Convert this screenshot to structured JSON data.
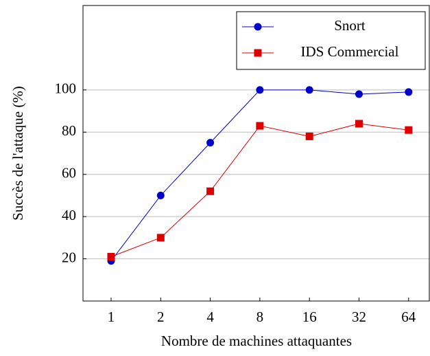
{
  "chart_data": {
    "type": "line",
    "x_label": "Nombre de machines attaquantes",
    "y_label": "Succès de l'attaque (%)",
    "categories": [
      "1",
      "2",
      "4",
      "8",
      "16",
      "32",
      "64"
    ],
    "series": [
      {
        "name": "Snort",
        "color": "#0000cc",
        "marker": "circle",
        "values": [
          19,
          50,
          75,
          100,
          100,
          98,
          99
        ]
      },
      {
        "name": "IDS Commercial",
        "color": "#dd0000",
        "marker": "square",
        "values": [
          21,
          30,
          52,
          83,
          78,
          84,
          81
        ]
      }
    ],
    "ylim": [
      0,
      140
    ],
    "yticks": [
      20,
      40,
      60,
      80,
      100
    ],
    "grid": true,
    "legend": "top-right"
  }
}
